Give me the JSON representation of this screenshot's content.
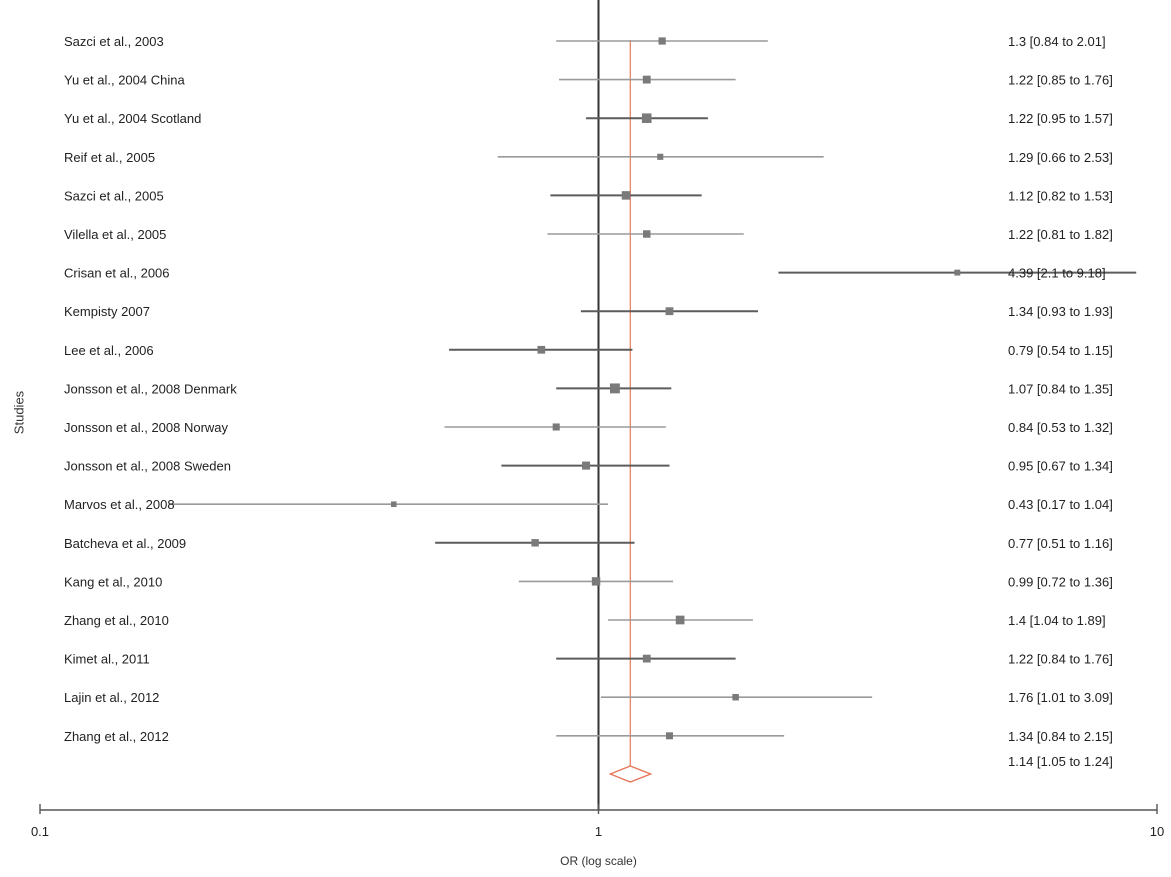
{
  "chart_data": {
    "type": "forest",
    "xlabel": "OR (log scale)",
    "ylabel": "Studies",
    "x_scale": "log",
    "xlim": [
      0.1,
      10
    ],
    "x_ticks": [
      {
        "value": 0.1,
        "label": "0.1"
      },
      {
        "value": 1,
        "label": "1"
      },
      {
        "value": 10,
        "label": "10"
      }
    ],
    "reference_line": 1,
    "pooled_line": 1.14,
    "studies": [
      {
        "label": "Sazci et al., 2003",
        "or": 1.3,
        "lo": 0.84,
        "hi": 2.01,
        "text": "1.3 [0.84 to 2.01]",
        "shade": "light"
      },
      {
        "label": "Yu et al., 2004 China",
        "or": 1.22,
        "lo": 0.85,
        "hi": 1.76,
        "text": "1.22 [0.85 to 1.76]",
        "shade": "light"
      },
      {
        "label": "Yu et al., 2004 Scotland",
        "or": 1.22,
        "lo": 0.95,
        "hi": 1.57,
        "text": "1.22 [0.95 to 1.57]",
        "shade": "dark"
      },
      {
        "label": "Reif et al., 2005",
        "or": 1.29,
        "lo": 0.66,
        "hi": 2.53,
        "text": "1.29 [0.66 to 2.53]",
        "shade": "light"
      },
      {
        "label": "Sazci et al., 2005",
        "or": 1.12,
        "lo": 0.82,
        "hi": 1.53,
        "text": "1.12 [0.82 to 1.53]",
        "shade": "dark"
      },
      {
        "label": "Vilella et al., 2005",
        "or": 1.22,
        "lo": 0.81,
        "hi": 1.82,
        "text": "1.22 [0.81 to 1.82]",
        "shade": "light"
      },
      {
        "label": "Crisan et al., 2006",
        "or": 4.39,
        "lo": 2.1,
        "hi": 9.18,
        "text": "4.39 [2.1 to 9.18]",
        "shade": "dark"
      },
      {
        "label": "Kempisty 2007",
        "or": 1.34,
        "lo": 0.93,
        "hi": 1.93,
        "text": "1.34 [0.93 to 1.93]",
        "shade": "dark"
      },
      {
        "label": "Lee et al., 2006",
        "or": 0.79,
        "lo": 0.54,
        "hi": 1.15,
        "text": "0.79 [0.54 to 1.15]",
        "shade": "dark"
      },
      {
        "label": "Jonsson et al., 2008 Denmark",
        "or": 1.07,
        "lo": 0.84,
        "hi": 1.35,
        "text": "1.07 [0.84 to 1.35]",
        "shade": "dark"
      },
      {
        "label": "Jonsson et al., 2008 Norway",
        "or": 0.84,
        "lo": 0.53,
        "hi": 1.32,
        "text": "0.84 [0.53 to 1.32]",
        "shade": "light"
      },
      {
        "label": "Jonsson et al., 2008 Sweden",
        "or": 0.95,
        "lo": 0.67,
        "hi": 1.34,
        "text": "0.95 [0.67 to 1.34]",
        "shade": "dark"
      },
      {
        "label": "Marvos et al., 2008",
        "or": 0.43,
        "lo": 0.17,
        "hi": 1.04,
        "text": "0.43 [0.17 to 1.04]",
        "shade": "light"
      },
      {
        "label": "Batcheva et al., 2009",
        "or": 0.77,
        "lo": 0.51,
        "hi": 1.16,
        "text": "0.77 [0.51 to 1.16]",
        "shade": "dark"
      },
      {
        "label": "Kang et al., 2010",
        "or": 0.99,
        "lo": 0.72,
        "hi": 1.36,
        "text": "0.99 [0.72 to 1.36]",
        "shade": "light"
      },
      {
        "label": "Zhang et al., 2010",
        "or": 1.4,
        "lo": 1.04,
        "hi": 1.89,
        "text": "1.4 [1.04 to 1.89]",
        "shade": "light"
      },
      {
        "label": "Kimet al., 2011",
        "or": 1.22,
        "lo": 0.84,
        "hi": 1.76,
        "text": "1.22 [0.84 to 1.76]",
        "shade": "dark"
      },
      {
        "label": "Lajin et al., 2012",
        "or": 1.76,
        "lo": 1.01,
        "hi": 3.09,
        "text": "1.76 [1.01 to 3.09]",
        "shade": "light"
      },
      {
        "label": "Zhang et al., 2012",
        "or": 1.34,
        "lo": 0.84,
        "hi": 2.15,
        "text": "1.34 [0.84 to 2.15]",
        "shade": "light"
      }
    ],
    "pooled": {
      "or": 1.14,
      "lo": 1.05,
      "hi": 1.24,
      "text": "1.14 [1.05 to 1.24]"
    },
    "colors": {
      "light_series": "#9a9a9a",
      "dark_series": "#5c5c5c",
      "marker": "#7a7a7a",
      "pooled": "#e8775a",
      "axis": "#555555"
    }
  }
}
